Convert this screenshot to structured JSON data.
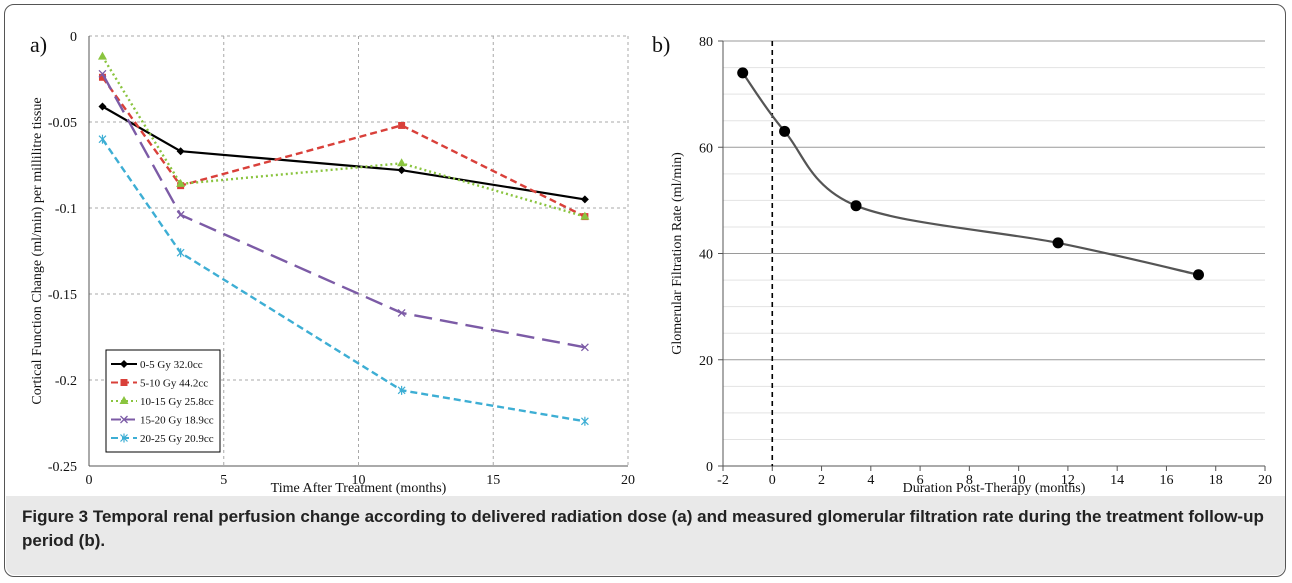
{
  "caption": {
    "label": "Figure 3",
    "text": "Temporal renal perfusion change according to delivered radiation dose (a) and measured glomerular filtration rate during the treatment follow-up period (b)."
  },
  "chart_data": [
    {
      "type": "line",
      "panel_label": "a)",
      "xlabel": "Time After Treatment (months)",
      "ylabel": "Cortical Function Change (ml/min) per millilitre tissue",
      "xlim": [
        0,
        20
      ],
      "ylim": [
        -0.25,
        0
      ],
      "xticks": [
        0,
        5,
        10,
        15,
        20
      ],
      "yticks": [
        0,
        -0.05,
        -0.1,
        -0.15,
        -0.2,
        -0.25
      ],
      "ytick_labels": [
        "0",
        "-0.05",
        "-0.1",
        "-0.15",
        "-0.2",
        "-0.25"
      ],
      "grid": true,
      "legend_position": "bottom-left",
      "x": [
        0.5,
        3.4,
        11.6,
        18.4
      ],
      "series": [
        {
          "name": "0-5 Gy 32.0cc",
          "values": [
            -0.041,
            -0.067,
            -0.078,
            -0.095
          ],
          "color": "#000000",
          "dash": "solid",
          "marker": "diamond"
        },
        {
          "name": "5-10 Gy 44.2cc",
          "values": [
            -0.024,
            -0.087,
            -0.052,
            -0.105
          ],
          "color": "#d9403a",
          "dash": "dashed",
          "marker": "square"
        },
        {
          "name": "10-15 Gy 25.8cc",
          "values": [
            -0.012,
            -0.086,
            -0.074,
            -0.105
          ],
          "color": "#8ac43f",
          "dash": "dotted",
          "marker": "triangle"
        },
        {
          "name": "15-20 Gy 18.9cc",
          "values": [
            -0.022,
            -0.104,
            -0.161,
            -0.181
          ],
          "color": "#7c5ba6",
          "dash": "longdash",
          "marker": "x"
        },
        {
          "name": "20-25 Gy 20.9cc",
          "values": [
            -0.06,
            -0.126,
            -0.206,
            -0.224
          ],
          "color": "#3daed4",
          "dash": "dashed",
          "marker": "star"
        }
      ]
    },
    {
      "type": "line",
      "panel_label": "b)",
      "xlabel": "Duration Post-Therapy (months)",
      "ylabel": "Glomerular Filtration Rate (ml/min)",
      "xlim": [
        -2,
        20
      ],
      "ylim": [
        0,
        80
      ],
      "xticks": [
        -2,
        0,
        2,
        4,
        6,
        8,
        10,
        12,
        14,
        16,
        18,
        20
      ],
      "yticks": [
        0,
        20,
        40,
        60,
        80
      ],
      "grid": true,
      "reference_line_x": 0,
      "x": [
        -1.2,
        0.5,
        3.4,
        11.6,
        17.3
      ],
      "values": [
        74,
        63,
        49,
        42,
        36
      ],
      "color": "#555555",
      "marker_color": "#000000"
    }
  ]
}
